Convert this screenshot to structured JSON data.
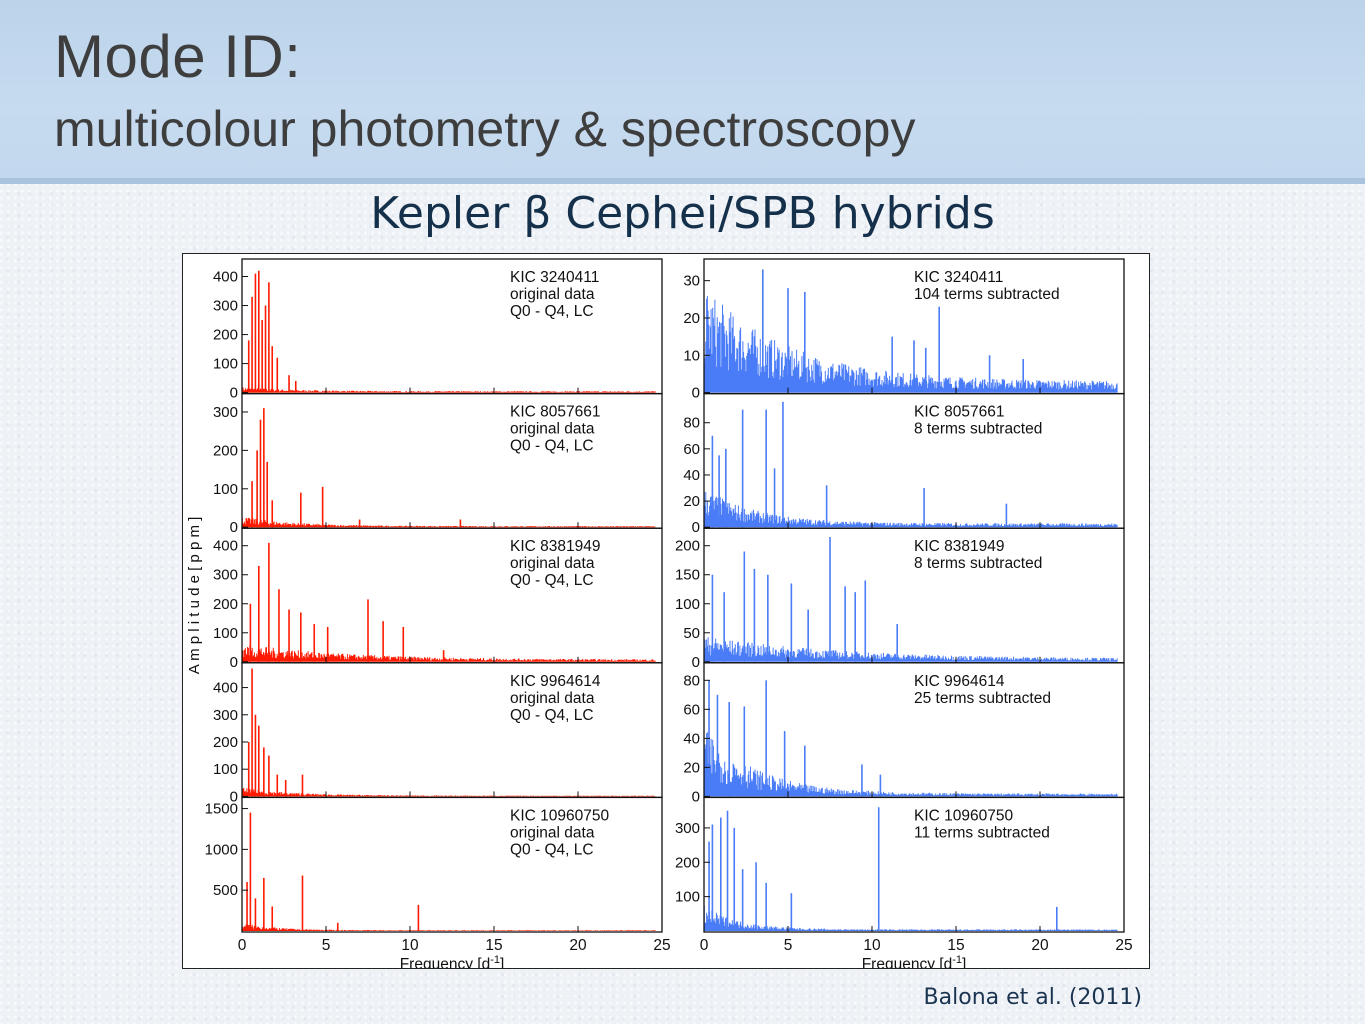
{
  "slide": {
    "title": "Mode ID:",
    "subtitle": "multicolour photometry & spectroscopy",
    "heading": "Kepler β Cephei/SPB hybrids",
    "citation": "Balona et al. (2011)"
  },
  "chart_data": {
    "type": "line",
    "ylabel": "A m p l i t u d e   [ p p m ]",
    "xlabel": "Frequency [d",
    "xlabel_sup": "-1",
    "xlabel_end": "]",
    "xlim": [
      0,
      25
    ],
    "x_ticks": [
      0,
      5,
      10,
      15,
      20,
      25
    ],
    "colors": {
      "original": "#ff1a00",
      "subtracted": "#4a7cf7"
    },
    "rows": [
      {
        "left": {
          "labels": [
            "KIC 3240411",
            "original data",
            "Q0 - Q4, LC"
          ],
          "ylim": [
            0,
            450
          ],
          "yticks": [
            0,
            100,
            200,
            300,
            400
          ],
          "peaks": [
            [
              0.4,
              180
            ],
            [
              0.6,
              330
            ],
            [
              0.8,
              410
            ],
            [
              1.0,
              420
            ],
            [
              1.2,
              250
            ],
            [
              1.4,
              300
            ],
            [
              1.6,
              380
            ],
            [
              1.8,
              160
            ],
            [
              2.1,
              120
            ],
            [
              2.8,
              60
            ],
            [
              3.2,
              40
            ]
          ],
          "noise_amp": 14,
          "noise_decay": 3,
          "noise_floor": 5
        },
        "right": {
          "labels": [
            "KIC 3240411",
            "104 terms subtracted"
          ],
          "ylim": [
            0,
            35
          ],
          "yticks": [
            0,
            10,
            20,
            30
          ],
          "peaks": [
            [
              3.5,
              33
            ],
            [
              5.0,
              28
            ],
            [
              6.0,
              27
            ],
            [
              14.0,
              23
            ],
            [
              11.2,
              15
            ],
            [
              12.5,
              14
            ],
            [
              13.2,
              12
            ],
            [
              17.0,
              10
            ],
            [
              19.0,
              9
            ]
          ],
          "noise_amp": 26,
          "noise_decay": 5,
          "noise_floor": 3
        }
      },
      {
        "left": {
          "labels": [
            "KIC 8057661",
            "original data",
            "Q0 - Q4, LC"
          ],
          "ylim": [
            0,
            340
          ],
          "yticks": [
            0,
            100,
            200,
            300
          ],
          "peaks": [
            [
              0.6,
              120
            ],
            [
              0.9,
              200
            ],
            [
              1.1,
              280
            ],
            [
              1.3,
              310
            ],
            [
              1.5,
              170
            ],
            [
              1.8,
              70
            ],
            [
              3.5,
              90
            ],
            [
              4.8,
              105
            ],
            [
              7.0,
              20
            ],
            [
              13.0,
              20
            ]
          ],
          "noise_amp": 25,
          "noise_decay": 3,
          "noise_floor": 3
        },
        "right": {
          "labels": [
            "KIC 8057661",
            "8 terms subtracted"
          ],
          "ylim": [
            0,
            100
          ],
          "yticks": [
            0,
            20,
            40,
            60,
            80
          ],
          "peaks": [
            [
              0.5,
              70
            ],
            [
              0.9,
              55
            ],
            [
              1.3,
              60
            ],
            [
              2.3,
              90
            ],
            [
              3.7,
              90
            ],
            [
              4.7,
              96
            ],
            [
              4.2,
              45
            ],
            [
              7.3,
              32
            ],
            [
              13.1,
              30
            ],
            [
              18.0,
              18
            ]
          ],
          "noise_amp": 28,
          "noise_decay": 3,
          "noise_floor": 3
        }
      },
      {
        "left": {
          "labels": [
            "KIC 8381949",
            "original data",
            "Q0 - Q4, LC"
          ],
          "ylim": [
            0,
            450
          ],
          "yticks": [
            0,
            100,
            200,
            300,
            400
          ],
          "peaks": [
            [
              0.5,
              200
            ],
            [
              1.0,
              330
            ],
            [
              1.6,
              410
            ],
            [
              2.2,
              250
            ],
            [
              2.8,
              180
            ],
            [
              3.5,
              170
            ],
            [
              4.3,
              130
            ],
            [
              5.1,
              120
            ],
            [
              7.5,
              215
            ],
            [
              8.4,
              140
            ],
            [
              9.6,
              120
            ],
            [
              12.0,
              40
            ]
          ],
          "noise_amp": 55,
          "noise_decay": 6,
          "noise_floor": 8
        },
        "right": {
          "labels": [
            "KIC 8381949",
            "8 terms subtracted"
          ],
          "ylim": [
            0,
            225
          ],
          "yticks": [
            0,
            50,
            100,
            150,
            200
          ],
          "peaks": [
            [
              0.5,
              150
            ],
            [
              1.2,
              120
            ],
            [
              2.4,
              190
            ],
            [
              3.0,
              160
            ],
            [
              3.8,
              150
            ],
            [
              5.2,
              135
            ],
            [
              6.2,
              90
            ],
            [
              7.5,
              215
            ],
            [
              8.4,
              130
            ],
            [
              9.0,
              120
            ],
            [
              9.6,
              140
            ],
            [
              11.5,
              65
            ]
          ],
          "noise_amp": 40,
          "noise_decay": 8,
          "noise_floor": 5
        }
      },
      {
        "left": {
          "labels": [
            "KIC 9964614",
            "original data",
            "Q0 - Q4, LC"
          ],
          "ylim": [
            0,
            480
          ],
          "yticks": [
            0,
            100,
            200,
            300,
            400
          ],
          "peaks": [
            [
              0.4,
              200
            ],
            [
              0.6,
              470
            ],
            [
              0.8,
              300
            ],
            [
              1.0,
              260
            ],
            [
              1.3,
              180
            ],
            [
              1.6,
              150
            ],
            [
              2.1,
              80
            ],
            [
              2.6,
              60
            ],
            [
              3.6,
              80
            ]
          ],
          "noise_amp": 30,
          "noise_decay": 3,
          "noise_floor": 3
        },
        "right": {
          "labels": [
            "KIC 9964614",
            "25 terms subtracted"
          ],
          "ylim": [
            0,
            90
          ],
          "yticks": [
            0,
            20,
            40,
            60,
            80
          ],
          "peaks": [
            [
              0.3,
              80
            ],
            [
              0.8,
              70
            ],
            [
              1.5,
              65
            ],
            [
              2.4,
              62
            ],
            [
              3.7,
              80
            ],
            [
              4.8,
              45
            ],
            [
              6.0,
              35
            ],
            [
              9.4,
              22
            ],
            [
              10.5,
              15
            ]
          ],
          "noise_amp": 48,
          "noise_decay": 3,
          "noise_floor": 2
        }
      },
      {
        "left": {
          "labels": [
            "KIC 10960750",
            "original data",
            "Q0 - Q4, LC"
          ],
          "ylim": [
            0,
            1600
          ],
          "yticks": [
            500,
            1000,
            1500
          ],
          "peaks": [
            [
              0.3,
              600
            ],
            [
              0.5,
              1450
            ],
            [
              0.8,
              400
            ],
            [
              1.3,
              650
            ],
            [
              1.8,
              300
            ],
            [
              3.6,
              680
            ],
            [
              5.7,
              100
            ],
            [
              10.5,
              320
            ]
          ],
          "noise_amp": 90,
          "noise_decay": 2,
          "noise_floor": 10
        },
        "right": {
          "labels": [
            "KIC 10960750",
            "11 terms subtracted"
          ],
          "ylim": [
            0,
            380
          ],
          "yticks": [
            100,
            200,
            300
          ],
          "peaks": [
            [
              0.3,
              260
            ],
            [
              0.5,
              310
            ],
            [
              1.0,
              330
            ],
            [
              1.4,
              350
            ],
            [
              1.8,
              300
            ],
            [
              2.3,
              180
            ],
            [
              3.1,
              200
            ],
            [
              3.7,
              140
            ],
            [
              5.2,
              110
            ],
            [
              10.4,
              360
            ],
            [
              21.0,
              70
            ]
          ],
          "noise_amp": 70,
          "noise_decay": 2,
          "noise_floor": 5
        }
      }
    ]
  }
}
